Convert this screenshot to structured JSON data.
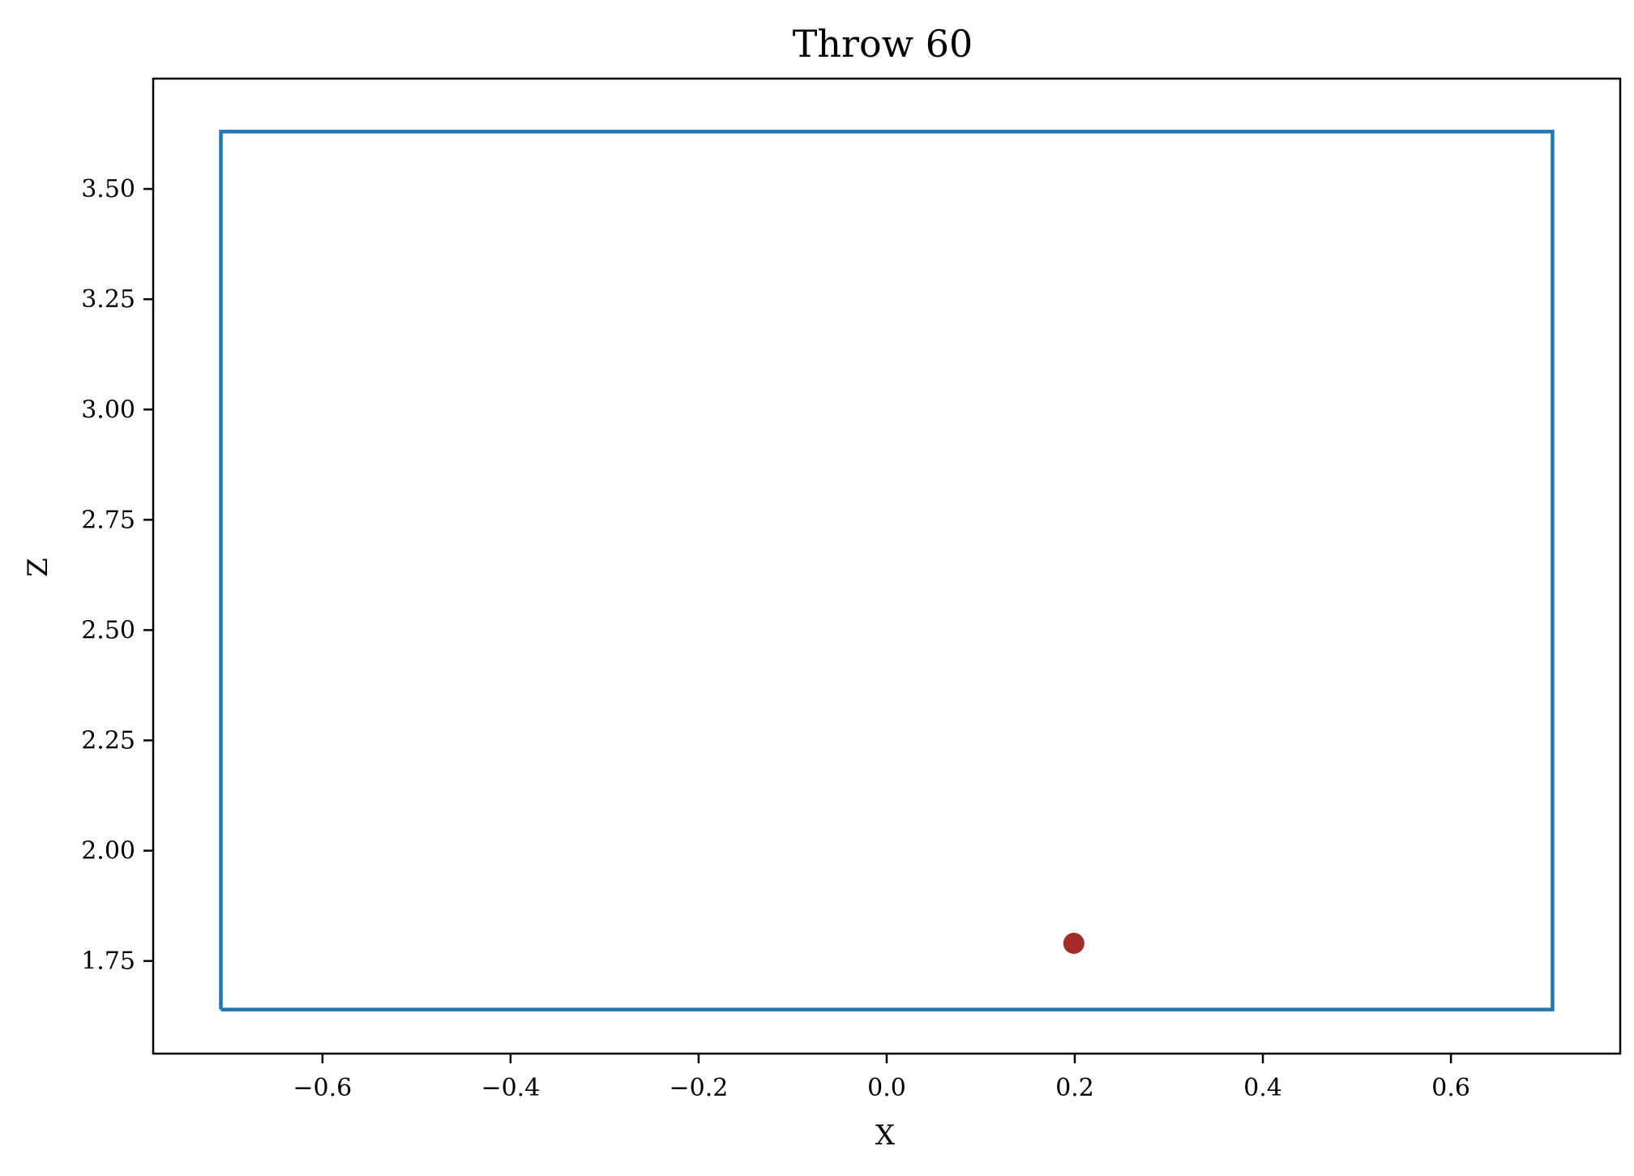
{
  "chart_data": {
    "type": "scatter",
    "title": "Throw 60",
    "xlabel": "X",
    "ylabel": "Z",
    "xlim": [
      -0.78,
      0.78
    ],
    "ylim": [
      1.54,
      3.75
    ],
    "grid": false,
    "xticks": [
      -0.6,
      -0.4,
      -0.2,
      0.0,
      0.2,
      0.4,
      0.6
    ],
    "xtick_labels": [
      "−0.6",
      "−0.4",
      "−0.2",
      "0.0",
      "0.2",
      "0.4",
      "0.6"
    ],
    "yticks": [
      1.75,
      2.0,
      2.25,
      2.5,
      2.75,
      3.0,
      3.25,
      3.5
    ],
    "ytick_labels": [
      "1.75",
      "2.00",
      "2.25",
      "2.50",
      "2.75",
      "3.00",
      "3.25",
      "3.50"
    ],
    "series": [
      {
        "name": "strike-zone",
        "kind": "line",
        "color": "#1f77b4",
        "x": [
          -0.708,
          0.708,
          0.708,
          -0.708,
          -0.708
        ],
        "y": [
          1.64,
          1.64,
          3.63,
          3.63,
          1.64
        ]
      },
      {
        "name": "pitch-location",
        "kind": "point",
        "color": "#a52a2a",
        "x": [
          0.199
        ],
        "y": [
          1.79
        ]
      }
    ]
  }
}
